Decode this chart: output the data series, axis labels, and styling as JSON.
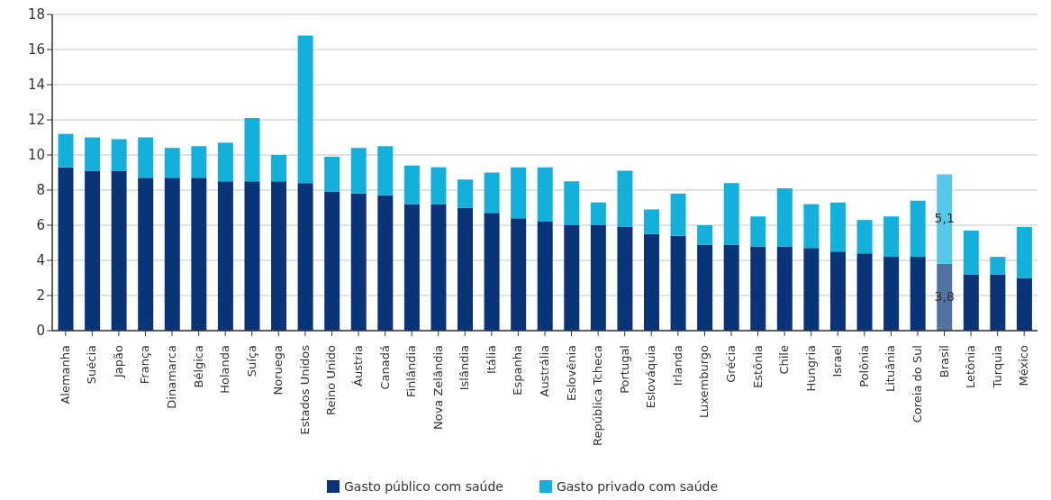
{
  "chart_data": {
    "type": "bar",
    "stacked": true,
    "categories": [
      "Alemanha",
      "Suécia",
      "Japão",
      "França",
      "Dinamarca",
      "Bélgica",
      "Holanda",
      "Suíça",
      "Noruega",
      "Estados Unidos",
      "Reino Unido",
      "Áustria",
      "Canadá",
      "Finlândia",
      "Nova Zelândia",
      "Islândia",
      "Itália",
      "Espanha",
      "Austrália",
      "Eslovênia",
      "República Tcheca",
      "Portugal",
      "Eslováquia",
      "Irlanda",
      "Luxemburgo",
      "Grécia",
      "Estônia",
      "Chile",
      "Hungria",
      "Israel",
      "Polônia",
      "Lituânia",
      "Coreia do Sul",
      "Brasil",
      "Letônia",
      "Turquia",
      "México"
    ],
    "series": [
      {
        "name": "Gasto público com saúde",
        "color": "#0a3478",
        "colors": [
          "#0a3478",
          "#0a3478",
          "#0a3478",
          "#0a3478",
          "#0a3478",
          "#0a3478",
          "#0a3478",
          "#0a3478",
          "#0a3478",
          "#0a3478",
          "#0a3478",
          "#0a3478",
          "#0a3478",
          "#0a3478",
          "#0a3478",
          "#0a3478",
          "#0a3478",
          "#0a3478",
          "#0a3478",
          "#0a3478",
          "#0a3478",
          "#0a3478",
          "#0a3478",
          "#0a3478",
          "#0a3478",
          "#0a3478",
          "#0a3478",
          "#0a3478",
          "#0a3478",
          "#0a3478",
          "#0a3478",
          "#0a3478",
          "#0a3478",
          "#5272a2",
          "#0a3478",
          "#0a3478",
          "#0a3478"
        ],
        "values": [
          9.3,
          9.1,
          9.1,
          8.7,
          8.7,
          8.7,
          8.5,
          8.5,
          8.5,
          8.4,
          7.9,
          7.8,
          7.7,
          7.2,
          7.2,
          7.0,
          6.7,
          6.4,
          6.2,
          6.0,
          6.0,
          5.9,
          5.5,
          5.4,
          4.9,
          4.9,
          4.8,
          4.8,
          4.7,
          4.5,
          4.4,
          4.2,
          4.2,
          3.8,
          3.2,
          3.2,
          3.0
        ],
        "value_labels": [
          null,
          null,
          null,
          null,
          null,
          null,
          null,
          null,
          null,
          null,
          null,
          null,
          null,
          null,
          null,
          null,
          null,
          null,
          null,
          null,
          null,
          null,
          null,
          null,
          null,
          null,
          null,
          null,
          null,
          null,
          null,
          null,
          null,
          "3,8",
          null,
          null,
          null
        ]
      },
      {
        "name": "Gasto privado com saúde",
        "color": "#14b0dc",
        "colors": [
          "#14b0dc",
          "#14b0dc",
          "#14b0dc",
          "#14b0dc",
          "#14b0dc",
          "#14b0dc",
          "#14b0dc",
          "#14b0dc",
          "#14b0dc",
          "#14b0dc",
          "#14b0dc",
          "#14b0dc",
          "#14b0dc",
          "#14b0dc",
          "#14b0dc",
          "#14b0dc",
          "#14b0dc",
          "#14b0dc",
          "#14b0dc",
          "#14b0dc",
          "#14b0dc",
          "#14b0dc",
          "#14b0dc",
          "#14b0dc",
          "#14b0dc",
          "#14b0dc",
          "#14b0dc",
          "#14b0dc",
          "#14b0dc",
          "#14b0dc",
          "#14b0dc",
          "#14b0dc",
          "#14b0dc",
          "#58c8e8",
          "#14b0dc",
          "#14b0dc",
          "#14b0dc"
        ],
        "values": [
          1.9,
          1.9,
          1.8,
          2.3,
          1.7,
          1.8,
          2.2,
          3.6,
          1.5,
          8.4,
          2.0,
          2.6,
          2.8,
          2.2,
          2.1,
          1.6,
          2.3,
          2.9,
          3.1,
          2.5,
          1.3,
          3.2,
          1.4,
          2.4,
          1.1,
          3.5,
          1.7,
          3.3,
          2.5,
          2.8,
          1.9,
          2.3,
          3.2,
          5.1,
          2.5,
          1.0,
          2.9
        ],
        "value_labels": [
          null,
          null,
          null,
          null,
          null,
          null,
          null,
          null,
          null,
          null,
          null,
          null,
          null,
          null,
          null,
          null,
          null,
          null,
          null,
          null,
          null,
          null,
          null,
          null,
          null,
          null,
          null,
          null,
          null,
          null,
          null,
          null,
          null,
          "5,1",
          null,
          null,
          null
        ]
      }
    ],
    "ylim": [
      0,
      18
    ],
    "yticks": [
      0,
      2,
      4,
      6,
      8,
      10,
      12,
      14,
      16,
      18
    ],
    "grid": "y",
    "legend": "bottom"
  }
}
